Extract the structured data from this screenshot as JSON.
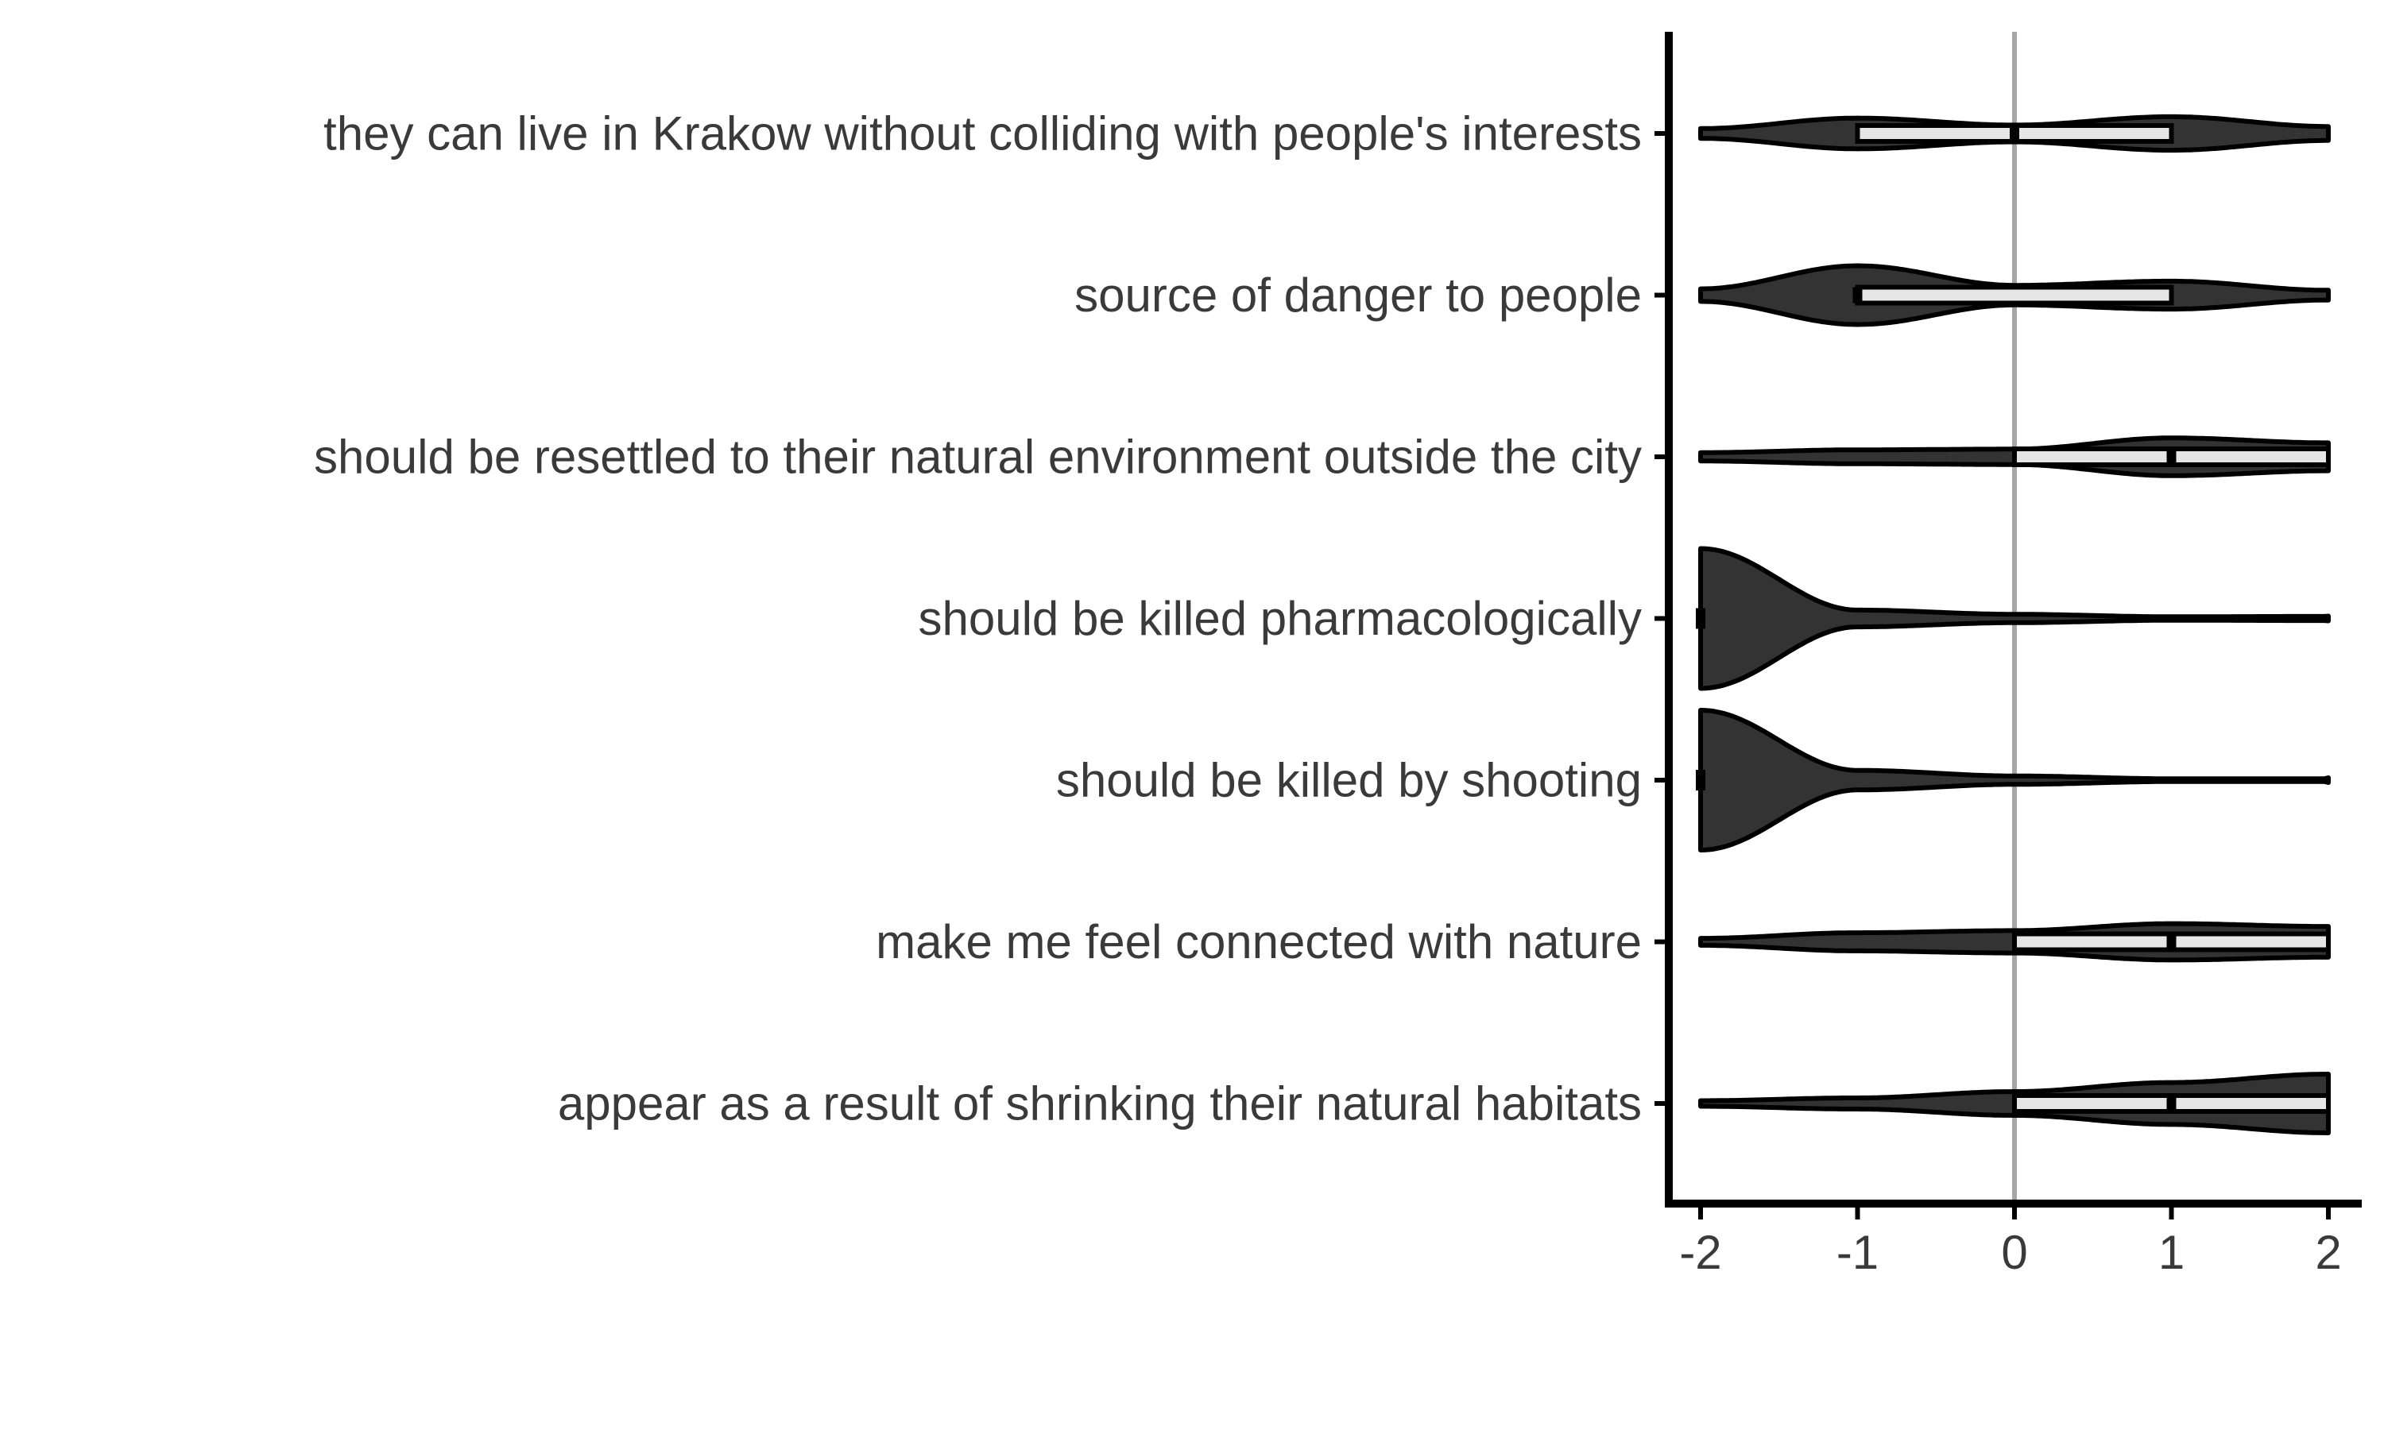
{
  "chart_data": {
    "type": "violin",
    "orientation": "horizontal",
    "title": "",
    "xlabel": "",
    "ylabel": "",
    "xlim": [
      -2,
      2
    ],
    "xticks": [
      -2,
      -1,
      0,
      1,
      2
    ],
    "tick_labels": [
      "-2",
      "-1",
      "0",
      "1",
      "2"
    ],
    "reference_line_x": 0,
    "grid": false,
    "legend": "none",
    "colors": {
      "violin_fill": "#333333",
      "box_fill": "#e6e6e6",
      "outline": "#000000",
      "reference_line": "#a6a6a6",
      "text": "#3a3a3a"
    },
    "density_x": [
      -2,
      -1,
      0,
      1,
      2
    ],
    "categories": [
      "they can live in Krakow without colliding with people's interests",
      "source of danger to people",
      "should be resettled to their natural environment outside the city",
      "should be killed pharmacologically",
      "should be killed by shooting",
      "make me feel connected with nature",
      "appear as a result of shrinking their natural habitats"
    ],
    "series": [
      {
        "category": "they can live in Krakow without colliding with people's interests",
        "density": [
          0.07,
          0.22,
          0.12,
          0.24,
          0.1
        ],
        "q1": -1,
        "median": 0,
        "q3": 1
      },
      {
        "category": "source of danger to people",
        "density": [
          0.09,
          0.42,
          0.14,
          0.2,
          0.07
        ],
        "q1": -1,
        "median": -1,
        "q3": 1
      },
      {
        "category": "should be resettled to their natural environment outside the city",
        "density": [
          0.06,
          0.1,
          0.11,
          0.27,
          0.2
        ],
        "q1": 0,
        "median": 1,
        "q3": 2
      },
      {
        "category": "should be killed pharmacologically",
        "density": [
          1.0,
          0.12,
          0.06,
          0.025,
          0.03
        ],
        "q1": -2,
        "median": -2,
        "q3": -2
      },
      {
        "category": "should be killed by shooting",
        "density": [
          1.0,
          0.14,
          0.06,
          0.02,
          0.02
        ],
        "q1": -2,
        "median": -2,
        "q3": -2
      },
      {
        "category": "make me feel connected with nature",
        "density": [
          0.05,
          0.13,
          0.16,
          0.26,
          0.22
        ],
        "q1": 0,
        "median": 1,
        "q3": 2
      },
      {
        "category": "appear as a result of shrinking their natural habitats",
        "density": [
          0.04,
          0.08,
          0.17,
          0.3,
          0.42
        ],
        "q1": 0,
        "median": 1,
        "q3": 2
      }
    ]
  }
}
